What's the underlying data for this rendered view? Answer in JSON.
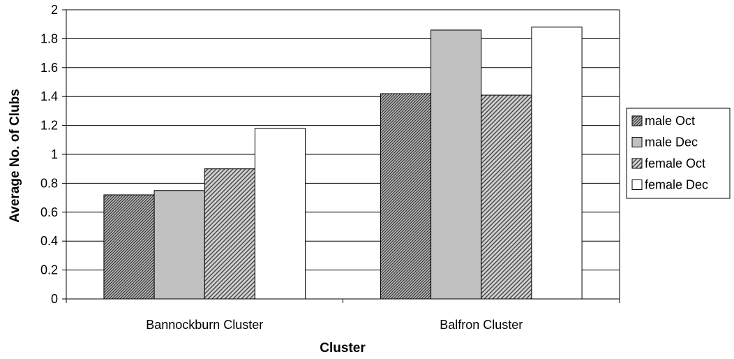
{
  "chart_data": {
    "type": "bar",
    "title": "",
    "xlabel": "Cluster",
    "ylabel": "Average No. of Clubs",
    "categories": [
      "Bannockburn Cluster",
      "Balfron Cluster"
    ],
    "ylim": [
      0,
      2
    ],
    "yticks": [
      0,
      0.2,
      0.4,
      0.6,
      0.8,
      1,
      1.2,
      1.4,
      1.6,
      1.8,
      2
    ],
    "ytick_labels": [
      "0",
      "0.2",
      "0.4",
      "0.6",
      "0.8",
      "1",
      "1.2",
      "1.4",
      "1.6",
      "1.8",
      "2"
    ],
    "grid": true,
    "legend_position": "right",
    "series": [
      {
        "name": "male Oct",
        "values": [
          0.72,
          1.42
        ],
        "color": "#7f7f7f",
        "pattern": "fine-diagonal"
      },
      {
        "name": "male Dec",
        "values": [
          0.75,
          1.86
        ],
        "color": "#c0c0c0",
        "pattern": "solid"
      },
      {
        "name": "female Oct",
        "values": [
          0.9,
          1.41
        ],
        "color": "#9a9a9a",
        "pattern": "wide-diagonal"
      },
      {
        "name": "female Dec",
        "values": [
          1.18,
          1.88
        ],
        "color": "#ffffff",
        "pattern": "solid"
      }
    ]
  }
}
